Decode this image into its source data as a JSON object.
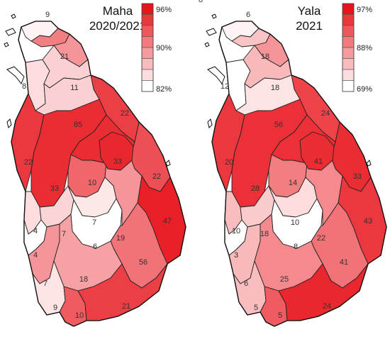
{
  "color_scale": {
    "low": "#ffffff",
    "high": "#e8141c"
  },
  "panels": [
    {
      "id": "maha",
      "title_line1": "Maha",
      "title_line2": "2020/2021",
      "legend_ticks": {
        "top": "96%",
        "middle": "90%",
        "bottom": "82%"
      },
      "districts": [
        {
          "key": "jaffna",
          "label": "9",
          "level": 0.05
        },
        {
          "key": "kilinochchi",
          "label": "",
          "level": 0.55
        },
        {
          "key": "mullaitivu",
          "label": "",
          "level": 0.45
        },
        {
          "key": "mannar",
          "label": "8",
          "level": 0.15
        },
        {
          "key": "vavuniya",
          "label": "21",
          "level": 0.2
        },
        {
          "key": "trincomalee",
          "label": "22",
          "level": 0.82
        },
        {
          "key": "anuradhapura",
          "label": "11",
          "level": 0.2
        },
        {
          "key": "puttalam",
          "label": "22",
          "level": 0.85
        },
        {
          "key": "kurunegala",
          "label": "33",
          "level": 0.9
        },
        {
          "key": "polonnaruwa",
          "label": "85",
          "level": 0.9
        },
        {
          "key": "matale",
          "label": "10",
          "level": 0.65
        },
        {
          "key": "batticaloa",
          "label": "22",
          "level": 0.75
        },
        {
          "key": "ampara",
          "label": "47",
          "level": 0.95
        },
        {
          "key": "gampaha",
          "label": "4",
          "level": 0.15
        },
        {
          "key": "kegalle",
          "label": "7",
          "level": 0.18
        },
        {
          "key": "kandy",
          "label": "7",
          "level": 0.1
        },
        {
          "key": "colombo",
          "label": "4",
          "level": 0.0
        },
        {
          "key": "nuwaraeliya",
          "label": "6",
          "level": 0.0
        },
        {
          "key": "badulla",
          "label": "19",
          "level": 0.45
        },
        {
          "key": "moneragala",
          "label": "56",
          "level": 0.6
        },
        {
          "key": "kalutara",
          "label": "7",
          "level": 0.45
        },
        {
          "key": "ratnapura",
          "label": "18",
          "level": 0.4
        },
        {
          "key": "galle",
          "label": "9",
          "level": 0.12
        },
        {
          "key": "matara",
          "label": "10",
          "level": 0.7
        },
        {
          "key": "hambantota",
          "label": "21",
          "level": 0.82
        },
        {
          "key": "kandy_extra",
          "label": "33",
          "level": 0.92
        }
      ]
    },
    {
      "id": "yala",
      "title_line1": "Yala",
      "title_line2": "2021",
      "legend_ticks": {
        "top": "97%",
        "middle": "88%",
        "bottom": "69%"
      },
      "districts": [
        {
          "key": "jaffna",
          "label": "6",
          "level": 0.05
        },
        {
          "key": "kilinochchi",
          "label": "8",
          "level": 0.25
        },
        {
          "key": "mullaitivu",
          "label": "",
          "level": 0.45
        },
        {
          "key": "mannar",
          "label": "12",
          "level": 0.0
        },
        {
          "key": "vavuniya",
          "label": "18",
          "level": 0.3
        },
        {
          "key": "trincomalee",
          "label": "24",
          "level": 0.8
        },
        {
          "key": "anuradhapura",
          "label": "18",
          "level": 0.12
        },
        {
          "key": "puttalam",
          "label": "20",
          "level": 0.85
        },
        {
          "key": "kurunegala",
          "label": "28",
          "level": 0.88
        },
        {
          "key": "polonnaruwa",
          "label": "56",
          "level": 0.88
        },
        {
          "key": "matale",
          "label": "14",
          "level": 0.55
        },
        {
          "key": "batticaloa",
          "label": "33",
          "level": 0.9
        },
        {
          "key": "ampara",
          "label": "43",
          "level": 0.85
        },
        {
          "key": "gampaha",
          "label": "10",
          "level": 0.28
        },
        {
          "key": "kegalle",
          "label": "18",
          "level": 0.22
        },
        {
          "key": "kandy",
          "label": "10",
          "level": 0.15
        },
        {
          "key": "colombo",
          "label": "3",
          "level": 0.0
        },
        {
          "key": "nuwaraeliya",
          "label": "8",
          "level": 0.0
        },
        {
          "key": "badulla",
          "label": "22",
          "level": 0.5
        },
        {
          "key": "moneragala",
          "label": "41",
          "level": 0.6
        },
        {
          "key": "kalutara",
          "label": "6",
          "level": 0.3
        },
        {
          "key": "ratnapura",
          "label": "25",
          "level": 0.5
        },
        {
          "key": "galle",
          "label": "5",
          "level": 0.28
        },
        {
          "key": "matara",
          "label": "5",
          "level": 0.7
        },
        {
          "key": "hambantota",
          "label": "24",
          "level": 0.92
        },
        {
          "key": "kandy_extra",
          "label": "41",
          "level": 0.9
        }
      ]
    }
  ]
}
